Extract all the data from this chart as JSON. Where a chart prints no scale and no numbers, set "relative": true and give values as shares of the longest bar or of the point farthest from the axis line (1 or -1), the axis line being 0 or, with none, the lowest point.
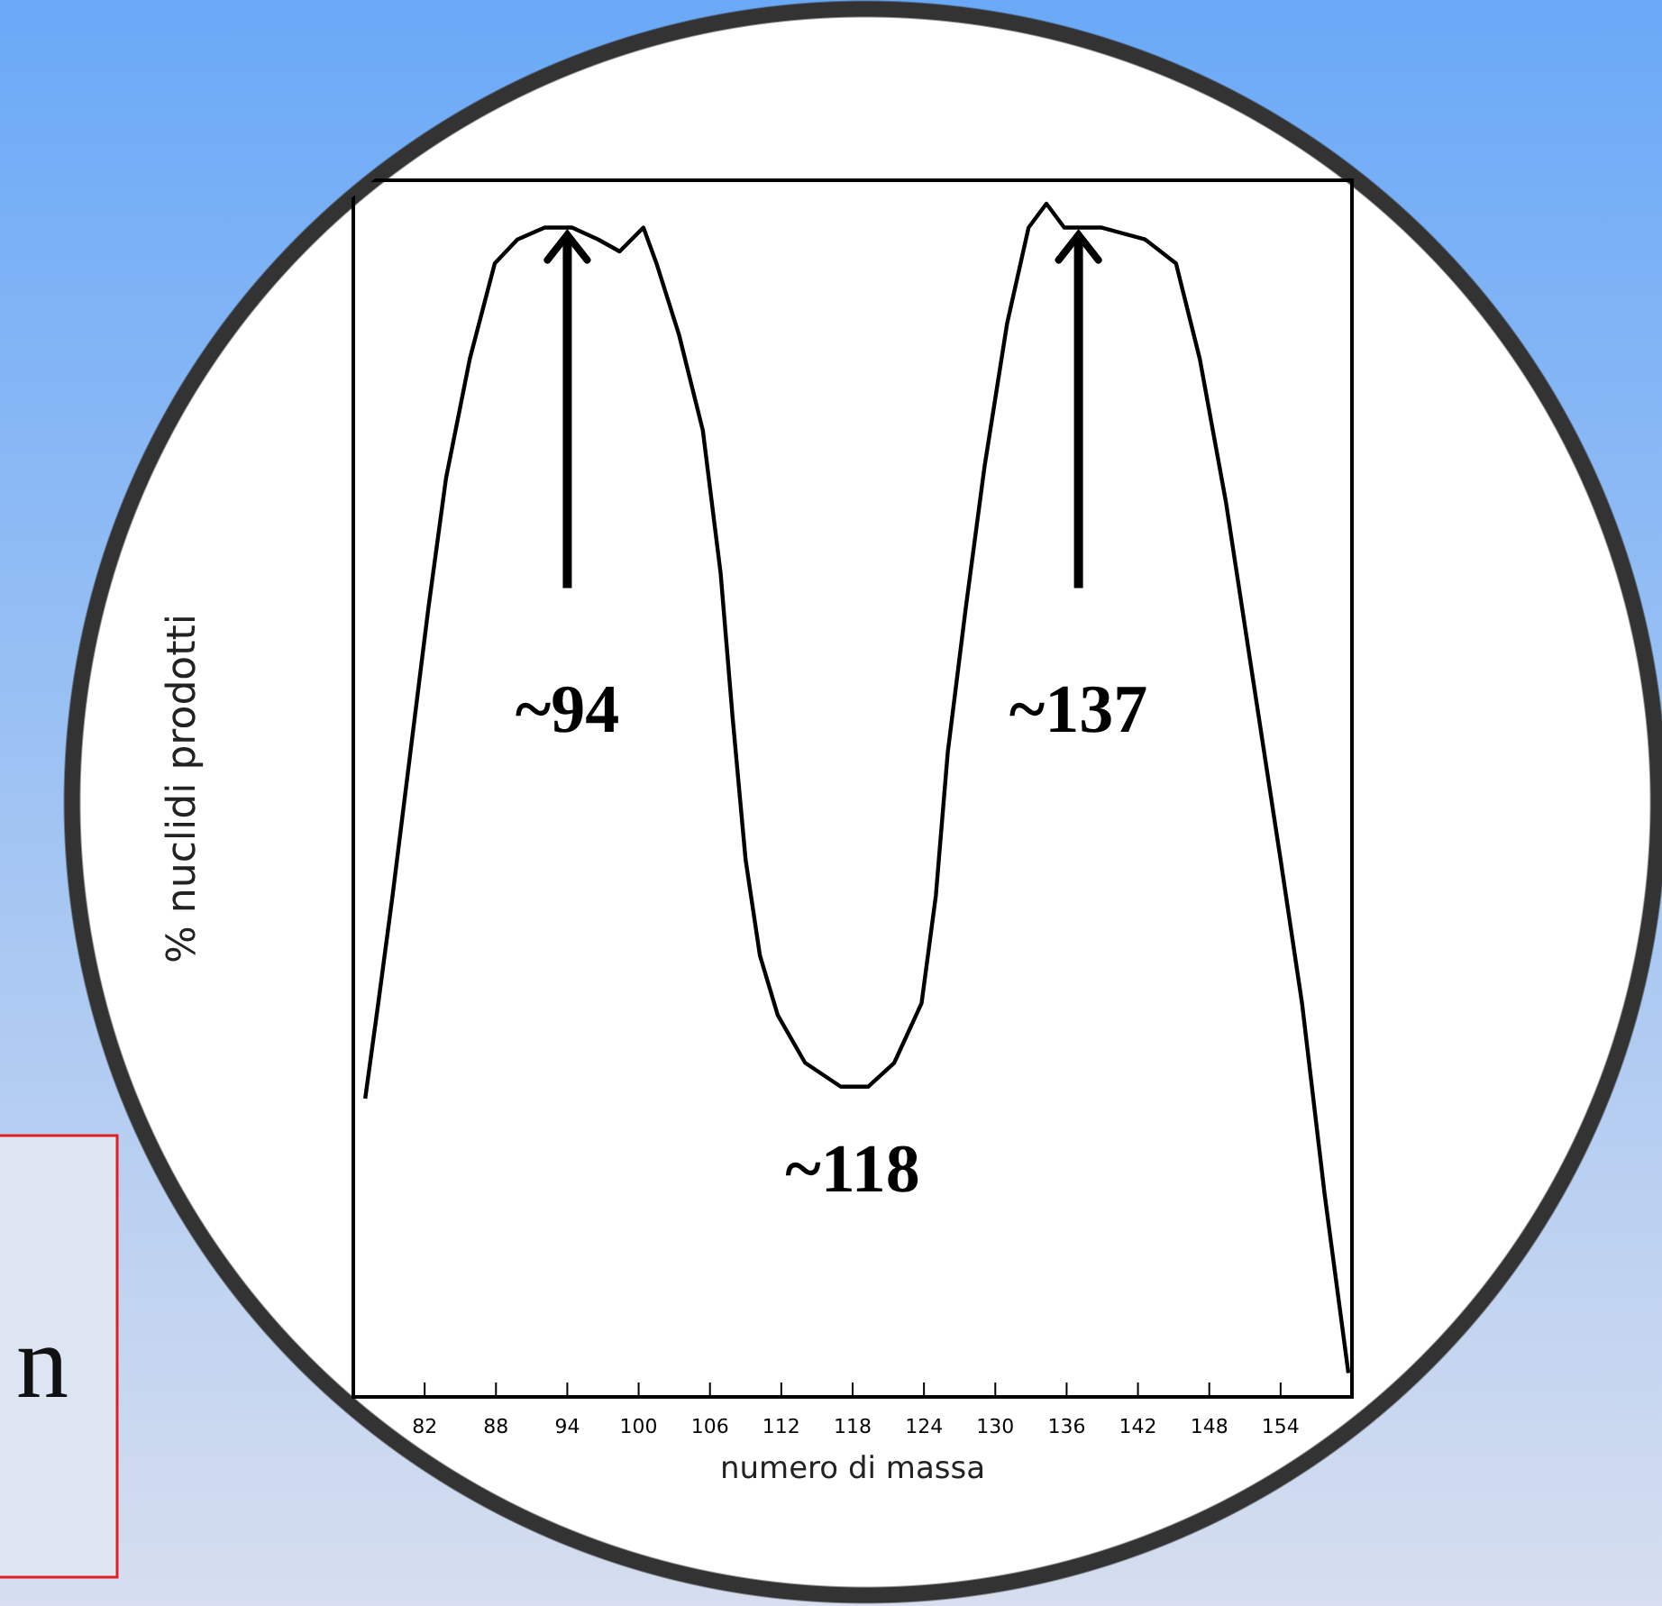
{
  "chart_data": {
    "type": "line",
    "relative": true,
    "xlabel": "numero di massa",
    "ylabel": "% nuclidi prodotti",
    "xlim": [
      76,
      160
    ],
    "xticks": [
      82,
      88,
      94,
      100,
      106,
      112,
      118,
      124,
      130,
      136,
      142,
      148,
      154
    ],
    "grid": false,
    "legend": false,
    "marker": "none",
    "line_style": "solid",
    "series": [
      {
        "color": "#000000",
        "x": [
          77.0,
          78.1,
          79.3,
          80.8,
          82.3,
          83.8,
          85.8,
          87.9,
          89.8,
          92.1,
          94.4,
          96.6,
          98.4,
          100.4,
          101.5,
          103.4,
          105.4,
          106.9,
          107.9,
          109.0,
          110.2,
          111.7,
          114.0,
          117.0,
          119.3,
          121.5,
          123.8,
          125.0,
          126.0,
          127.5,
          129.1,
          131.0,
          132.8,
          134.3,
          135.8,
          137.0,
          138.9,
          142.6,
          145.2,
          147.2,
          149.4,
          151.7,
          154.0,
          155.8,
          157.7,
          159.7
        ],
        "values": [
          0.25,
          0.33,
          0.42,
          0.54,
          0.66,
          0.77,
          0.87,
          0.95,
          0.97,
          0.98,
          0.98,
          0.97,
          0.96,
          0.98,
          0.95,
          0.89,
          0.81,
          0.69,
          0.57,
          0.45,
          0.37,
          0.32,
          0.28,
          0.26,
          0.26,
          0.28,
          0.33,
          0.42,
          0.54,
          0.66,
          0.78,
          0.9,
          0.98,
          1.0,
          0.98,
          0.98,
          0.98,
          0.97,
          0.95,
          0.87,
          0.75,
          0.6,
          0.45,
          0.33,
          0.17,
          0.02
        ]
      }
    ],
    "annotations": [
      {
        "text": "~94",
        "x": 94,
        "y": 0.98
      },
      {
        "text": "~137",
        "x": 137,
        "y": 0.98
      },
      {
        "text": "~118",
        "x": 118,
        "y": 0.26
      },
      "n"
    ]
  }
}
